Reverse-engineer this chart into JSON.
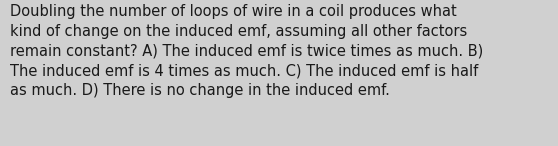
{
  "lines": [
    "Doubling the number of loops of wire in a coil produces what",
    "kind of change on the induced emf, assuming all other factors",
    "remain constant? A) The induced emf is twice times as much. B)",
    "The induced emf is 4 times as much. C) The induced emf is half",
    "as much. D) There is no change in the induced emf."
  ],
  "background_color": "#d0d0d0",
  "text_color": "#1a1a1a",
  "font_size": 10.5,
  "font_family": "DejaVu Sans",
  "fig_width": 5.58,
  "fig_height": 1.46,
  "dpi": 100
}
